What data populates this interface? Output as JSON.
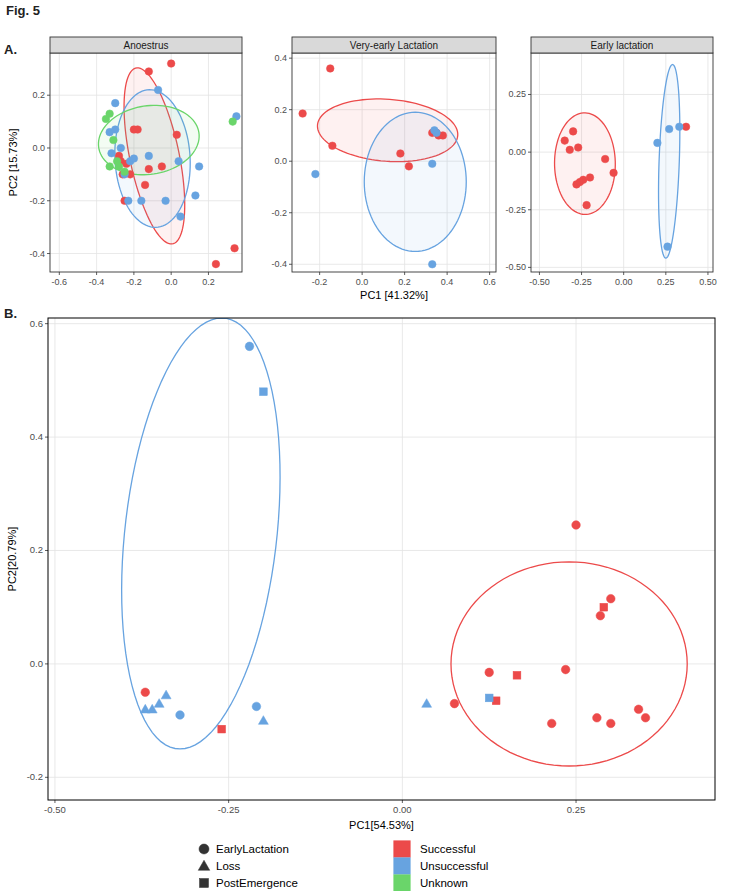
{
  "figure_label": "Fig. 5",
  "panels": [
    "A.",
    "B."
  ],
  "shape_legend": [
    {
      "name": "EarlyLactation",
      "marker": "circle"
    },
    {
      "name": "Loss",
      "marker": "triangle"
    },
    {
      "name": "PostEmergence",
      "marker": "square"
    }
  ],
  "chart_data": [
    {
      "type": "scatter",
      "title": "Anoestrus",
      "y_label": "PC2 [15.73%]",
      "grid": true,
      "xlim": [
        -0.65,
        0.38
      ],
      "ylim": [
        -0.47,
        0.36
      ],
      "xticks": [
        -0.6,
        -0.4,
        -0.2,
        {
          "value": 0,
          "label": "0.0"
        },
        0.2
      ],
      "yticks": [
        -0.4,
        -0.2,
        {
          "value": 0,
          "label": "0.0"
        },
        0.2
      ],
      "series": [
        {
          "name": "Successful",
          "color": "#ec4a4a",
          "marker": "circle",
          "x": [
            -0.12,
            0.0,
            -0.2,
            -0.28,
            -0.27,
            -0.24,
            -0.26,
            -0.22,
            -0.12,
            -0.14,
            -0.25,
            0.03,
            -0.18,
            0.24,
            0.34,
            -0.05
          ],
          "values": [
            0.29,
            0.32,
            0.07,
            -0.03,
            -0.05,
            -0.06,
            -0.1,
            -0.1,
            -0.08,
            -0.14,
            -0.2,
            0.05,
            0.07,
            -0.44,
            -0.38,
            -0.07
          ],
          "ellipse": {
            "center": [
              -0.09,
              -0.03
            ],
            "semi_axes": [
              [
                -0.11,
                0.33
              ],
              [
                0.12,
                0.05
              ]
            ]
          }
        },
        {
          "name": "Unsuccessful",
          "color": "#67a3e0",
          "marker": "circle",
          "x": [
            -0.3,
            -0.33,
            -0.3,
            -0.27,
            -0.32,
            -0.22,
            -0.2,
            -0.25,
            -0.23,
            -0.16,
            -0.03,
            0.05,
            0.04,
            0.15,
            0.13,
            -0.07,
            0.35,
            -0.12
          ],
          "values": [
            0.17,
            0.06,
            0.07,
            0.0,
            -0.02,
            -0.05,
            -0.04,
            -0.1,
            -0.2,
            -0.2,
            -0.2,
            -0.26,
            -0.05,
            -0.07,
            -0.18,
            0.22,
            0.12,
            -0.03
          ],
          "ellipse": {
            "center": [
              -0.1,
              -0.04
            ],
            "semi_axes": [
              [
                -0.03,
                0.26
              ],
              [
                0.2,
                0.02
              ]
            ]
          }
        },
        {
          "name": "Unknown",
          "color": "#6ad56a",
          "marker": "circle",
          "x": [
            -0.35,
            -0.33,
            -0.31,
            -0.29,
            -0.28,
            -0.25,
            -0.33,
            0.33
          ],
          "values": [
            0.11,
            0.13,
            0.03,
            -0.05,
            -0.07,
            -0.09,
            -0.07,
            0.1
          ],
          "ellipse": {
            "center": [
              -0.12,
              0.03
            ],
            "semi_axes": [
              [
                0.27,
                0.02
              ],
              [
                -0.01,
                0.13
              ]
            ]
          }
        }
      ]
    },
    {
      "type": "scatter",
      "title": "Very-early Lactation",
      "x_label": "PC1 [41.32%]",
      "grid": true,
      "xlim": [
        -0.33,
        0.63
      ],
      "ylim": [
        -0.43,
        0.42
      ],
      "xticks": [
        -0.2,
        {
          "value": 0,
          "label": "0.0"
        },
        0.2,
        0.4,
        0.6
      ],
      "yticks": [
        -0.4,
        -0.2,
        {
          "value": 0,
          "label": "0.0"
        },
        0.2,
        0.4
      ],
      "series": [
        {
          "name": "Successful",
          "color": "#ec4a4a",
          "marker": "circle",
          "x": [
            -0.28,
            -0.15,
            -0.14,
            0.18,
            0.22,
            0.33,
            0.35,
            0.38,
            0.36
          ],
          "values": [
            0.185,
            0.36,
            0.06,
            0.03,
            -0.02,
            0.11,
            0.11,
            0.1,
            0.1
          ],
          "ellipse": {
            "center": [
              0.12,
              0.12
            ],
            "semi_axes": [
              [
                0.33,
                -0.02
              ],
              [
                0.01,
                0.12
              ]
            ]
          }
        },
        {
          "name": "Unsuccessful",
          "color": "#67a3e0",
          "marker": "circle",
          "x": [
            -0.22,
            0.34,
            0.35,
            0.33,
            0.33
          ],
          "values": [
            -0.05,
            0.12,
            0.11,
            -0.01,
            -0.4
          ],
          "ellipse": {
            "center": [
              0.25,
              -0.08
            ],
            "semi_axes": [
              [
                0.0,
                0.27
              ],
              [
                0.24,
                0.0
              ]
            ]
          }
        }
      ]
    },
    {
      "type": "scatter",
      "title": "Early lactation",
      "grid": true,
      "xlim": [
        -0.55,
        0.53
      ],
      "ylim": [
        -0.52,
        0.43
      ],
      "xticks": [
        {
          "value": -0.5,
          "label": "-0.50"
        },
        -0.25,
        {
          "value": 0,
          "label": "0.00"
        },
        0.25,
        {
          "value": 0.5,
          "label": "0.50"
        }
      ],
      "yticks": [
        {
          "value": -0.5,
          "label": "-0.50"
        },
        -0.25,
        {
          "value": 0,
          "label": "0.00"
        },
        0.25
      ],
      "series": [
        {
          "name": "Successful",
          "color": "#ec4a4a",
          "marker": "circle",
          "x": [
            -0.35,
            -0.3,
            -0.32,
            -0.27,
            -0.28,
            -0.24,
            -0.2,
            -0.22,
            -0.26,
            -0.11,
            -0.06,
            0.37
          ],
          "values": [
            0.05,
            0.09,
            0.01,
            0.02,
            -0.14,
            -0.12,
            -0.11,
            -0.23,
            -0.13,
            -0.03,
            -0.09,
            0.11
          ],
          "ellipse": {
            "center": [
              -0.23,
              -0.05
            ],
            "semi_axes": [
              [
                0.18,
                0.01
              ],
              [
                -0.01,
                0.22
              ]
            ]
          }
        },
        {
          "name": "Unsuccessful",
          "color": "#67a3e0",
          "marker": "circle",
          "x": [
            0.2,
            0.27,
            0.33,
            0.26
          ],
          "values": [
            0.04,
            0.1,
            0.11,
            -0.41
          ],
          "ellipse": {
            "center": [
              0.27,
              -0.04
            ],
            "semi_axes": [
              [
                0.02,
                0.42
              ],
              [
                0.06,
                0.0
              ]
            ]
          }
        }
      ]
    },
    {
      "type": "scatter",
      "x_label": "PC1[54.53%]",
      "y_label": "PC2[20.79%]",
      "grid": true,
      "xlim": [
        -0.51,
        0.45
      ],
      "ylim": [
        -0.24,
        0.61
      ],
      "xticks": [
        {
          "value": -0.5,
          "label": "-0.50"
        },
        -0.25,
        {
          "value": 0,
          "label": "0.00"
        },
        0.25
      ],
      "yticks": [
        -0.2,
        {
          "value": 0,
          "label": "0.0"
        },
        0.2,
        0.4,
        0.6
      ],
      "series": [
        {
          "name": "Successful",
          "color": "#ec4a4a",
          "marker": "circle",
          "x": [
            -0.37,
            0.25,
            0.3,
            0.285,
            0.125,
            0.235,
            0.075,
            0.215,
            0.28,
            0.3,
            0.34,
            0.35
          ],
          "values": [
            -0.05,
            0.245,
            0.115,
            0.085,
            -0.015,
            -0.01,
            -0.07,
            -0.105,
            -0.095,
            -0.105,
            -0.08,
            -0.095
          ],
          "ellipse": {
            "center": [
              0.24,
              0.0
            ],
            "semi_axes": [
              [
                0.17,
                0.0
              ],
              [
                0.0,
                0.18
              ]
            ]
          }
        },
        {
          "name": "Successful",
          "color": "#ec4a4a",
          "marker": "square",
          "x": [
            -0.26,
            0.29,
            0.135,
            0.165
          ],
          "values": [
            -0.115,
            0.1,
            -0.065,
            -0.02
          ]
        },
        {
          "name": "Unsuccessful",
          "color": "#67a3e0",
          "marker": "circle",
          "x": [
            -0.22,
            -0.32,
            -0.21
          ],
          "values": [
            0.56,
            -0.09,
            -0.075
          ],
          "ellipse": {
            "center": [
              -0.29,
              0.23
            ],
            "semi_axes": [
              [
                0.03,
                0.38
              ],
              [
                0.11,
                0.0
              ]
            ]
          }
        },
        {
          "name": "Unsuccessful",
          "color": "#67a3e0",
          "marker": "triangle",
          "x": [
            -0.37,
            -0.36,
            -0.35,
            -0.34,
            -0.2,
            0.035
          ],
          "values": [
            -0.08,
            -0.08,
            -0.07,
            -0.055,
            -0.1,
            -0.07
          ]
        },
        {
          "name": "Unsuccessful",
          "color": "#67a3e0",
          "marker": "square",
          "x": [
            -0.2,
            0.125
          ],
          "values": [
            0.48,
            -0.06
          ]
        }
      ]
    }
  ]
}
